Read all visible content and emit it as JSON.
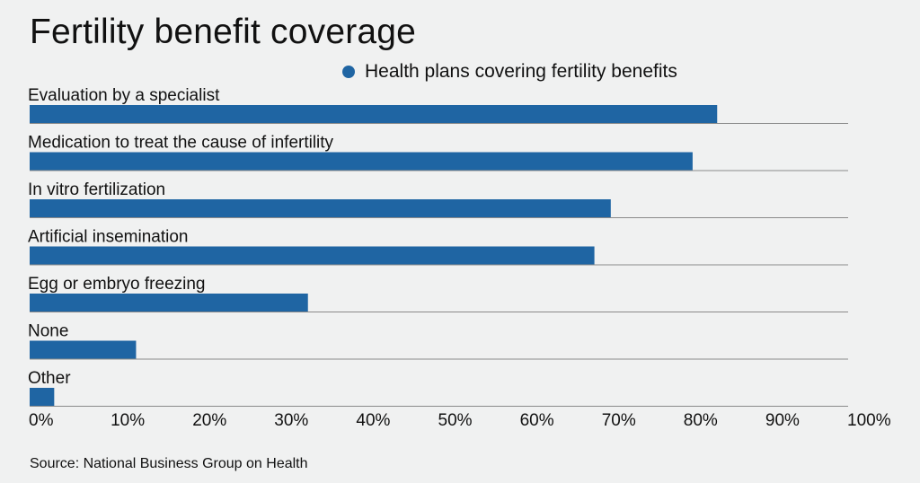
{
  "chart_data": {
    "type": "bar",
    "orientation": "horizontal",
    "title": "Fertility benefit coverage",
    "series": [
      {
        "name": "Health plans covering fertility benefits",
        "values": [
          84,
          81,
          71,
          69,
          34,
          13,
          3
        ]
      }
    ],
    "categories": [
      "Evaluation by a specialist",
      "Medication to treat the cause of infertility",
      "In vitro fertilization",
      "Artificial insemination",
      "Egg or embryo freezing",
      "None",
      "Other"
    ],
    "xlim": [
      0,
      100
    ],
    "x_ticks": [
      "0%",
      "10%",
      "20%",
      "30%",
      "40%",
      "50%",
      "60%",
      "70%",
      "80%",
      "90%",
      "100%"
    ],
    "legend_position": "top",
    "grid": false
  },
  "colors": {
    "bar": "#1f65a3",
    "separator": "#8a8a8a"
  },
  "source": "Source: National Business Group on Health"
}
